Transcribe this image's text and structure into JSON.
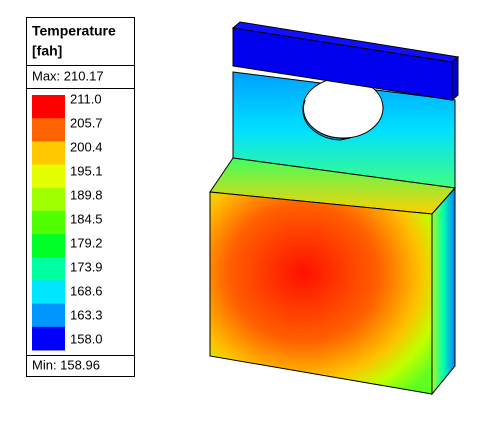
{
  "legend": {
    "title": "Temperature",
    "unit": "[fah]",
    "max": "Max: 210.17",
    "min": "Min: 158.96",
    "levels": [
      "211.0",
      "205.7",
      "200.4",
      "195.1",
      "189.8",
      "184.5",
      "179.2",
      "173.9",
      "168.6",
      "163.3",
      "158.0"
    ],
    "colors": [
      "#ff0000",
      "#ff6400",
      "#ffc800",
      "#e6ff00",
      "#a0ff00",
      "#50ff00",
      "#00ff28",
      "#00ffa0",
      "#00e6ff",
      "#0096ff",
      "#0000ff"
    ]
  }
}
